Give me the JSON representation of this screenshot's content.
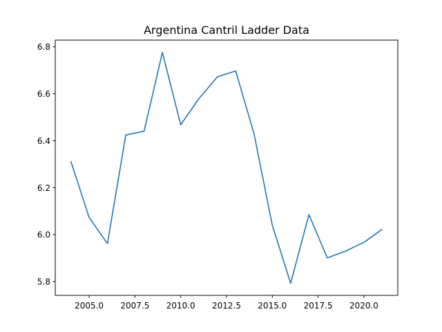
{
  "chart_data": {
    "type": "line",
    "title": "Argentina Cantril Ladder Data",
    "xlabel": "",
    "ylabel": "",
    "xlim": [
      2003.15,
      2021.85
    ],
    "ylim": [
      5.7415,
      6.8285
    ],
    "grid": false,
    "legend": "none",
    "x_ticks": [
      {
        "value": 2005.0,
        "label": "2005.0"
      },
      {
        "value": 2007.5,
        "label": "2007.5"
      },
      {
        "value": 2010.0,
        "label": "2010.0"
      },
      {
        "value": 2012.5,
        "label": "2012.5"
      },
      {
        "value": 2015.0,
        "label": "2015.0"
      },
      {
        "value": 2017.5,
        "label": "2017.5"
      },
      {
        "value": 2020.0,
        "label": "2020.0"
      }
    ],
    "y_ticks": [
      {
        "value": 5.8,
        "label": "5.8"
      },
      {
        "value": 6.0,
        "label": "6.0"
      },
      {
        "value": 6.2,
        "label": "6.2"
      },
      {
        "value": 6.4,
        "label": "6.4"
      },
      {
        "value": 6.6,
        "label": "6.6"
      },
      {
        "value": 6.8,
        "label": "6.8"
      }
    ],
    "series": [
      {
        "color": "#1f77b4",
        "x": [
          2004,
          2005,
          2006,
          2007,
          2008,
          2009,
          2010,
          2011,
          2012,
          2013,
          2014,
          2015,
          2016,
          2017,
          2018,
          2019,
          2020,
          2021
        ],
        "y": [
          6.313,
          6.073,
          5.962,
          6.424,
          6.441,
          6.776,
          6.468,
          6.58,
          6.672,
          6.697,
          6.43,
          6.04,
          5.793,
          6.085,
          5.901,
          5.93,
          5.967,
          6.023
        ]
      }
    ]
  }
}
